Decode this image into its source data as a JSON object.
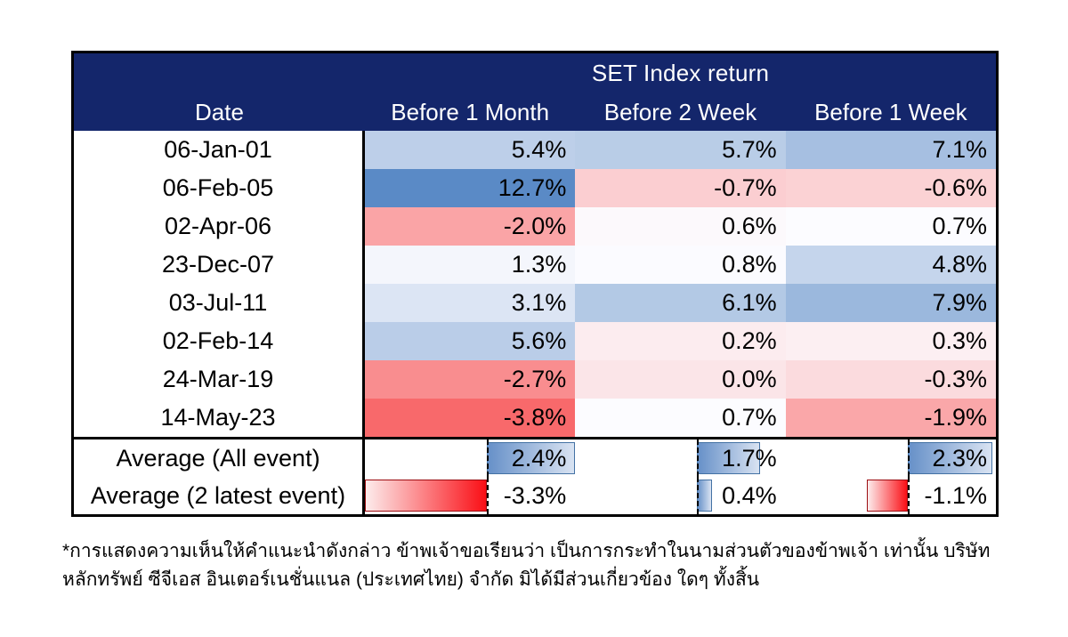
{
  "chart_data": {
    "type": "table",
    "title": "SET Index return",
    "columns": [
      "Date",
      "Before 1 Month",
      "Before 2 Week",
      "Before 1 Week"
    ],
    "rows": [
      {
        "date": "06-Jan-01",
        "values": [
          5.4,
          5.7,
          7.1
        ]
      },
      {
        "date": "06-Feb-05",
        "values": [
          12.7,
          -0.7,
          -0.6
        ]
      },
      {
        "date": "02-Apr-06",
        "values": [
          -2.0,
          0.6,
          0.7
        ]
      },
      {
        "date": "23-Dec-07",
        "values": [
          1.3,
          0.8,
          4.8
        ]
      },
      {
        "date": "03-Jul-11",
        "values": [
          3.1,
          6.1,
          7.9
        ]
      },
      {
        "date": "02-Feb-14",
        "values": [
          5.6,
          0.2,
          0.3
        ]
      },
      {
        "date": "24-Mar-19",
        "values": [
          -2.7,
          0.0,
          -0.3
        ]
      },
      {
        "date": "14-May-23",
        "values": [
          -3.8,
          0.7,
          -1.9
        ]
      }
    ],
    "averages": [
      {
        "label": "Average (All event)",
        "values": [
          2.4,
          1.7,
          2.3
        ]
      },
      {
        "label": "Average (2 latest event)",
        "values": [
          -3.3,
          0.4,
          -1.1
        ]
      }
    ],
    "value_format": "percent_1dp",
    "color_scale": {
      "min": -3.8,
      "mid": 0.7,
      "max": 12.7,
      "min_color": "#F8696B",
      "mid_color": "#FCFCFF",
      "max_color": "#5A8AC6"
    },
    "databar": {
      "axis_frac": 0.58,
      "pos_max": 2.4,
      "neg_min": -3.3
    }
  },
  "colors": {
    "header_bg": "#14266B",
    "header_text": "#FFFFFF",
    "border": "#000000",
    "bar_positive_start": "#6690C8",
    "bar_positive_end": "#D9E3F2",
    "bar_positive_border": "#4472A4",
    "bar_negative_start": "#FDECEC",
    "bar_negative_end": "#FA0F16",
    "bar_negative_border": "#9C0D12"
  },
  "footnote": {
    "line1": "*การแสดงความเห็นให้คำแนะนำดังกล่าว ข้าพเจ้าขอเรียนว่า เป็นการกระทำในนามส่วนตัวของข้าพเจ้า เท่านั้น บริษัท",
    "line2": "หลักทรัพย์ ซีจีเอส อินเตอร์เนชั่นแนล (ประเทศไทย) จำกัด มิได้มีส่วนเกี่ยวข้อง ใดๆ ทั้งสิ้น"
  }
}
